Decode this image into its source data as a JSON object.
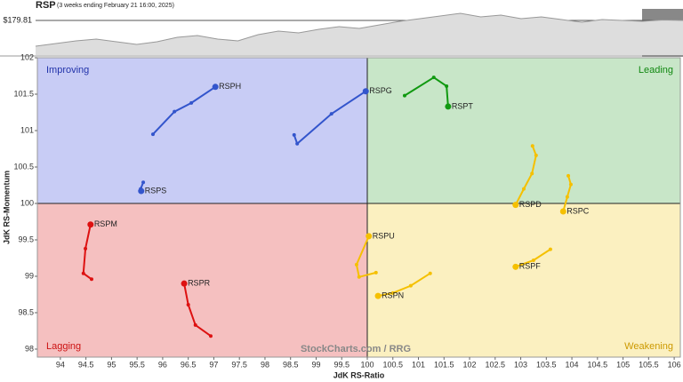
{
  "chart_data": [
    {
      "type": "area",
      "title": "RSP",
      "subtitle": "(3 weeks ending February 21 16:00, 2025)",
      "values": [
        174,
        174.6,
        175.2,
        175.6,
        175.0,
        174.4,
        175.0,
        176.0,
        176.4,
        175.6,
        175.2,
        176.6,
        177.4,
        177.0,
        177.8,
        178.4,
        178.0,
        178.8,
        179.6,
        180.2,
        180.8,
        181.4,
        180.6,
        181.0,
        180.2,
        180.6,
        180.0,
        179.4,
        180.0,
        179.8,
        179.6,
        179.9,
        179.81
      ],
      "color": "#999999",
      "ylim": [
        172,
        182
      ],
      "yticks": [
        {
          "value": 179.81,
          "label": "$179.81"
        }
      ]
    },
    {
      "type": "rrg",
      "xlabel": "JdK RS-Ratio",
      "ylabel": "JdK RS-Momentum",
      "watermark": "StockCharts.com / RRG",
      "quadrants": [
        "Improving",
        "Leading",
        "Lagging",
        "Weakening"
      ],
      "center": [
        100,
        100
      ],
      "xlim": [
        93.55,
        106.12
      ],
      "ylim": [
        97.89,
        102
      ],
      "xticks": [
        94,
        94.5,
        95,
        95.5,
        96,
        96.5,
        97,
        97.5,
        98,
        98.5,
        99,
        99.5,
        100,
        100.5,
        101,
        101.5,
        102,
        102.5,
        103,
        103.5,
        104,
        104.5,
        105,
        105.5,
        106
      ],
      "yticks": [
        98,
        98.5,
        99,
        99.5,
        100,
        100.5,
        101,
        101.5,
        102
      ],
      "series": [
        {
          "name": "RSPH",
          "color": "#3355cc",
          "x": [
            95.81,
            96.23,
            96.56,
            97.03
          ],
          "values": [
            100.95,
            101.26,
            101.38,
            101.6
          ]
        },
        {
          "name": "RSPS",
          "color": "#3355cc",
          "x": [
            95.62,
            95.57,
            95.58
          ],
          "values": [
            100.29,
            100.2,
            100.17
          ]
        },
        {
          "name": "RSPG",
          "color": "#3355cc",
          "x": [
            98.57,
            98.63,
            99.3,
            99.97
          ],
          "values": [
            100.94,
            100.82,
            101.23,
            101.54
          ]
        },
        {
          "name": "RSPT",
          "color": "#119911",
          "x": [
            100.73,
            101.3,
            101.55,
            101.58
          ],
          "values": [
            101.48,
            101.73,
            101.61,
            101.33
          ]
        },
        {
          "name": "RSPD",
          "color": "#f5c000",
          "x": [
            103.23,
            103.3,
            103.22,
            103.06,
            102.9
          ],
          "values": [
            100.79,
            100.66,
            100.41,
            100.2,
            99.98
          ]
        },
        {
          "name": "RSPC",
          "color": "#f5c000",
          "x": [
            103.93,
            103.98,
            103.91,
            103.83
          ],
          "values": [
            100.38,
            100.26,
            100.09,
            99.89
          ]
        },
        {
          "name": "RSPU",
          "color": "#f5c000",
          "x": [
            100.17,
            99.84,
            99.79,
            100.03
          ],
          "values": [
            99.05,
            98.99,
            99.16,
            99.55
          ]
        },
        {
          "name": "RSPN",
          "color": "#f5c000",
          "x": [
            101.23,
            100.85,
            100.5,
            100.21
          ],
          "values": [
            99.04,
            98.87,
            98.77,
            98.73
          ]
        },
        {
          "name": "RSPF",
          "color": "#f5c000",
          "x": [
            103.58,
            103.25,
            102.9
          ],
          "values": [
            99.37,
            99.22,
            99.13
          ]
        },
        {
          "name": "RSPM",
          "color": "#dd1111",
          "x": [
            94.61,
            94.45,
            94.49,
            94.59
          ],
          "values": [
            98.96,
            99.04,
            99.38,
            99.71
          ]
        },
        {
          "name": "RSPR",
          "color": "#dd1111",
          "x": [
            96.94,
            96.64,
            96.5,
            96.42
          ],
          "values": [
            98.18,
            98.33,
            98.61,
            98.9
          ]
        }
      ]
    }
  ]
}
